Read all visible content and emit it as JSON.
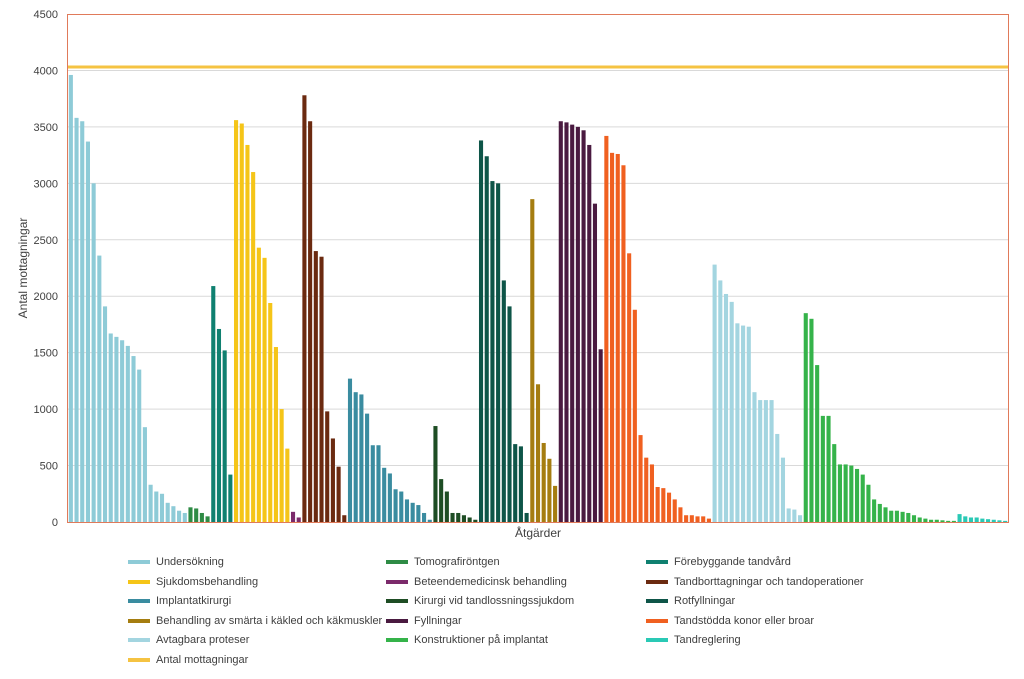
{
  "chart_data": {
    "type": "bar",
    "title": "",
    "xlabel": "Åtgärder",
    "ylabel": "Antal mottagningar",
    "ylim": [
      0,
      4500
    ],
    "yticks": [
      0,
      500,
      1000,
      1500,
      2000,
      2500,
      3000,
      3500,
      4000,
      4500
    ],
    "grid": true,
    "legend_position": "bottom",
    "reference_line": {
      "name": "Antal mottagningar",
      "value": 4030,
      "color": "#f5c342"
    },
    "series": [
      {
        "name": "Undersökning",
        "color": "#8ecbd7",
        "values": [
          3960,
          3580,
          3550,
          3370,
          3000,
          2360,
          1910,
          1670,
          1640,
          1610,
          1560,
          1470,
          1350,
          840,
          330,
          270,
          250,
          170,
          140,
          100,
          80
        ]
      },
      {
        "name": "Tomografiröntgen",
        "color": "#2e8b45",
        "values": [
          130,
          120,
          80,
          50
        ]
      },
      {
        "name": "Förebyggande tandvård",
        "color": "#0f8070",
        "values": [
          2090,
          1710,
          1520,
          420
        ]
      },
      {
        "name": "Sjukdomsbehandling",
        "color": "#f5c518",
        "values": [
          3560,
          3530,
          3340,
          3100,
          2430,
          2340,
          1940,
          1550,
          1000,
          650
        ]
      },
      {
        "name": "Beteendemedicinsk behandling",
        "color": "#7b2a6b",
        "values": [
          90,
          40
        ]
      },
      {
        "name": "Tandborttagningar och tandoperationer",
        "color": "#6b2a10",
        "values": [
          3780,
          3550,
          2400,
          2350,
          980,
          740,
          490,
          60
        ]
      },
      {
        "name": "Implantatkirurgi",
        "color": "#3a8ca0",
        "values": [
          1270,
          1150,
          1130,
          960,
          680,
          680,
          480,
          430,
          290,
          270,
          200,
          170,
          150,
          80,
          20
        ]
      },
      {
        "name": "Kirurgi vid tandlossningssjukdom",
        "color": "#1e4d24",
        "values": [
          850,
          380,
          270,
          80,
          80,
          60,
          40,
          20
        ]
      },
      {
        "name": "Rotfyllningar",
        "color": "#0e5548",
        "values": [
          3380,
          3240,
          3020,
          3000,
          2140,
          1910,
          690,
          670,
          80
        ]
      },
      {
        "name": "Behandling av smärta i käkled och käkmuskler",
        "color": "#a57d10",
        "values": [
          2860,
          1220,
          700,
          560,
          320
        ]
      },
      {
        "name": "Fyllningar",
        "color": "#4a1a40",
        "values": [
          3550,
          3540,
          3520,
          3500,
          3470,
          3340,
          2820,
          1530
        ]
      },
      {
        "name": "Tandstödda konor eller broar",
        "color": "#f06020",
        "values": [
          3420,
          3270,
          3260,
          3160,
          2380,
          1880,
          770,
          570,
          510,
          310,
          300,
          260,
          200,
          130,
          60,
          60,
          50,
          50,
          30
        ]
      },
      {
        "name": "Avtagbara proteser",
        "color": "#a3d5e0",
        "values": [
          2280,
          2140,
          2020,
          1950,
          1760,
          1740,
          1730,
          1150,
          1080,
          1080,
          1080,
          780,
          570,
          120,
          110,
          60
        ]
      },
      {
        "name": "Konstruktioner på implantat",
        "color": "#35b34a",
        "values": [
          1850,
          1800,
          1390,
          940,
          940,
          690,
          510,
          510,
          500,
          470,
          420,
          330,
          200,
          160,
          130,
          100,
          100,
          90,
          80,
          60,
          40,
          30,
          20,
          20,
          15,
          10,
          10
        ]
      },
      {
        "name": "Tandreglering",
        "color": "#2ac9b5",
        "values": [
          70,
          50,
          40,
          40,
          30,
          25,
          20,
          15,
          10
        ]
      }
    ]
  }
}
